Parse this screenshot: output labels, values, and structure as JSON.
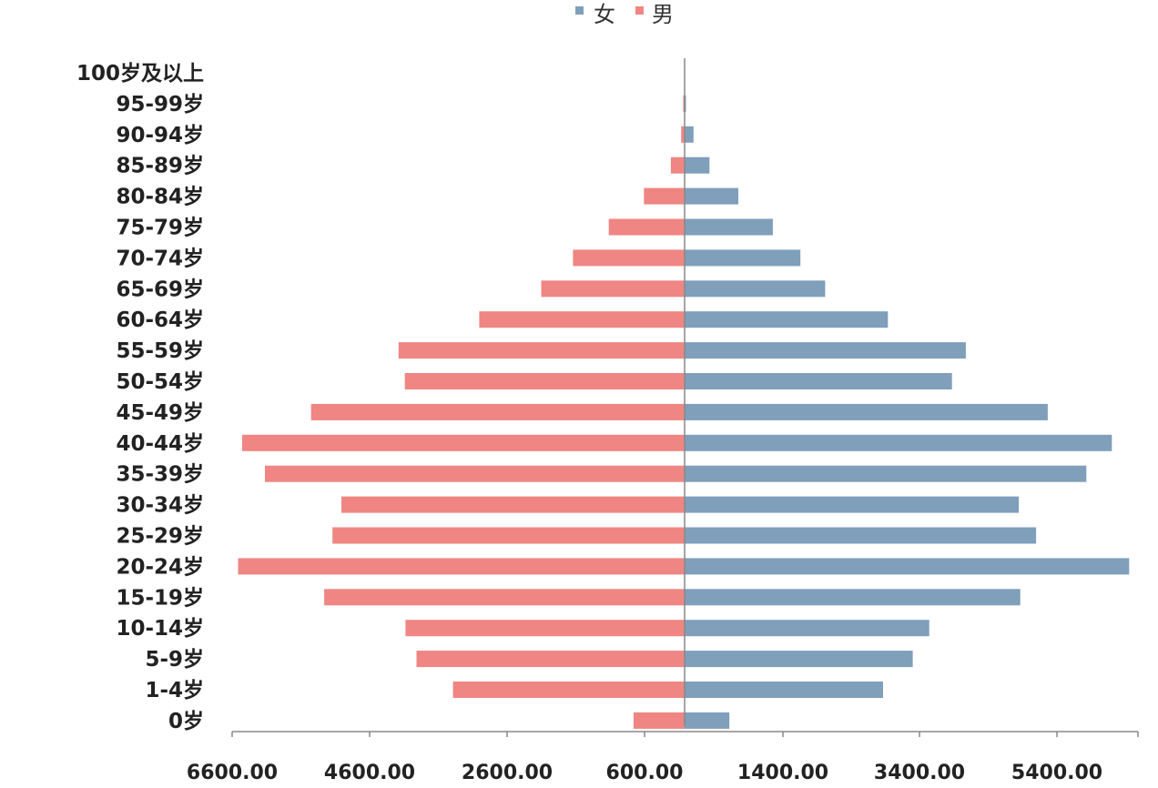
{
  "chart_data": {
    "type": "bar",
    "orientation": "horizontal-pyramid",
    "categories": [
      "100岁及以上",
      "95-99岁",
      "90-94岁",
      "85-89岁",
      "80-84岁",
      "75-79岁",
      "70-74岁",
      "65-69岁",
      "60-64岁",
      "55-59岁",
      "50-54岁",
      "45-49岁",
      "40-44岁",
      "35-39岁",
      "30-34岁",
      "25-29岁",
      "20-24岁",
      "15-19岁",
      "10-14岁",
      "5-9岁",
      "1-4岁",
      "0岁"
    ],
    "series": [
      {
        "name": "女",
        "color": "#7f9fbb",
        "side": "right",
        "values": [
          5,
          20,
          130,
          360,
          780,
          1280,
          1680,
          2040,
          2950,
          4080,
          3880,
          5270,
          6200,
          5830,
          4850,
          5100,
          6450,
          4870,
          3550,
          3310,
          2880,
          650
        ]
      },
      {
        "name": "男",
        "color": "#ef8683",
        "side": "left",
        "values": [
          5,
          20,
          50,
          200,
          590,
          1100,
          1620,
          2080,
          2980,
          4150,
          4060,
          5420,
          6420,
          6090,
          4980,
          5110,
          6480,
          5230,
          4050,
          3890,
          3360,
          740
        ]
      }
    ],
    "x_ticks": [
      "6600.00",
      "4600.00",
      "2600.00",
      "600.00",
      "1400.00",
      "3400.00",
      "5400.00"
    ],
    "xlim": [
      -6600,
      6600
    ],
    "legend_position": "top-center",
    "grid": false
  }
}
